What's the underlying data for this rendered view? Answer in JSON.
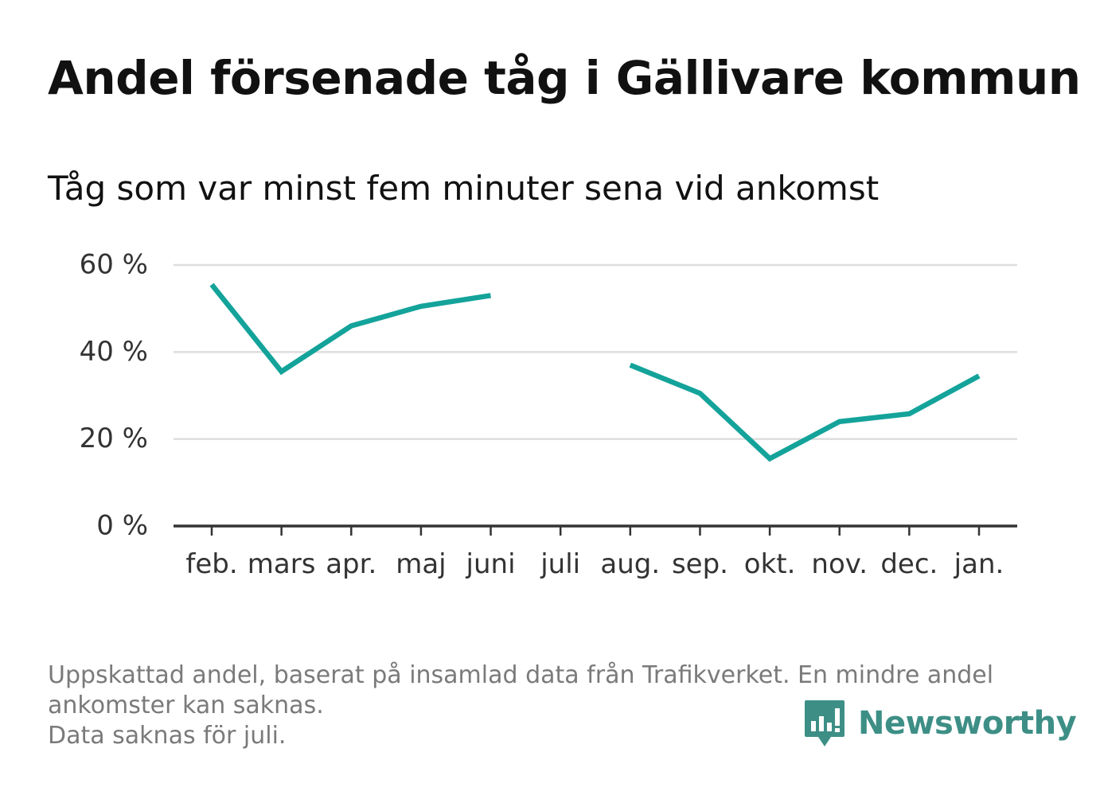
{
  "title": "Andel försenade tåg i Gällivare kommun",
  "subtitle": "Tåg som var minst fem minuter sena vid ankomst",
  "colors": {
    "line": "#14a39a",
    "grid": "#dddddd",
    "axis": "#333333",
    "text": "#111111",
    "footnote": "#7a7a7a",
    "brand": "#3d8f86"
  },
  "chart_data": {
    "type": "line",
    "categories": [
      "feb.",
      "mars",
      "apr.",
      "maj",
      "juni",
      "juli",
      "aug.",
      "sep.",
      "okt.",
      "nov.",
      "dec.",
      "jan."
    ],
    "series": [
      {
        "values": [
          55.5,
          35.5,
          46,
          50.5,
          53,
          null,
          37,
          30.5,
          15.5,
          24,
          25.8,
          34.5
        ]
      }
    ],
    "y_ticks": [
      0,
      20,
      40,
      60
    ],
    "y_tick_labels": [
      "0 %",
      "20 %",
      "40 %",
      "60 %"
    ],
    "ylim": [
      0,
      60
    ],
    "xlabel": "",
    "ylabel": "",
    "grid": true,
    "legend": "none"
  },
  "footnote": {
    "line1": "Uppskattad andel, baserat på insamlad data från Trafikverket. En mindre andel",
    "line2": "ankomster kan saknas.",
    "line3": "Data saknas för juli."
  },
  "brand": {
    "name": "Newsworthy",
    "icon": "bar-chart-speech-bubble-icon"
  }
}
